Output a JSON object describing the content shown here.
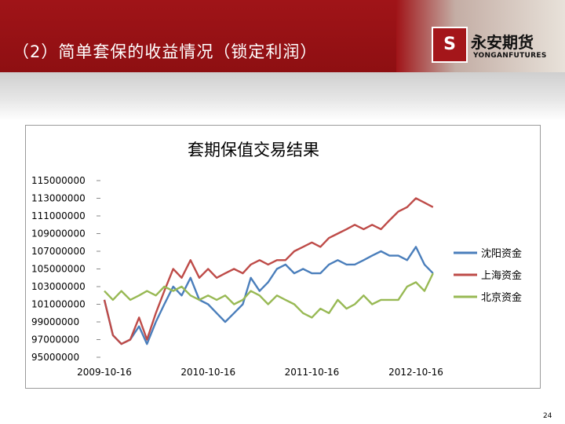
{
  "slide": {
    "title": "（2）简单套保的收益情况（锁定利润）",
    "page_number": "24",
    "logo_mark": "S",
    "logo_cn": "永安期货",
    "logo_en": "YONGANFUTURES"
  },
  "colors": {
    "header_red": "#a01418",
    "series_shenyang": "#4a7ebb",
    "series_shanghai": "#be4b48",
    "series_beijing": "#98b954"
  },
  "chart_data": {
    "type": "line",
    "title": "套期保值交易结果",
    "xlabel": "",
    "ylabel": "",
    "x_tick_labels": [
      "2009-10-16",
      "2010-10-16",
      "2011-10-16",
      "2012-10-16"
    ],
    "y_ticks": [
      95000000,
      97000000,
      99000000,
      101000000,
      103000000,
      105000000,
      107000000,
      109000000,
      111000000,
      113000000,
      115000000
    ],
    "ylim": [
      95000000,
      115000000
    ],
    "grid": false,
    "legend_position": "right",
    "series": [
      {
        "name": "沈阳资金",
        "x": [
          "2009-10-16",
          "2009-11-15",
          "2009-12-15",
          "2010-01-15",
          "2010-02-15",
          "2010-03-15",
          "2010-04-15",
          "2010-05-15",
          "2010-06-15",
          "2010-07-15",
          "2010-08-15",
          "2010-09-15",
          "2010-10-16",
          "2010-11-15",
          "2010-12-15",
          "2011-01-15",
          "2011-02-15",
          "2011-03-15",
          "2011-04-15",
          "2011-05-15",
          "2011-06-15",
          "2011-07-15",
          "2011-08-15",
          "2011-09-15",
          "2011-10-16",
          "2011-11-15",
          "2011-12-15",
          "2012-01-15",
          "2012-02-15",
          "2012-03-15",
          "2012-04-15",
          "2012-05-15",
          "2012-06-15",
          "2012-07-15",
          "2012-08-15",
          "2012-09-15",
          "2012-10-16",
          "2012-11-15",
          "2012-12-15"
        ],
        "values": [
          101500000,
          97500000,
          96500000,
          97000000,
          98500000,
          96500000,
          99000000,
          101000000,
          103000000,
          102000000,
          104000000,
          101500000,
          101000000,
          100000000,
          99000000,
          100000000,
          101000000,
          104000000,
          102500000,
          103500000,
          105000000,
          105500000,
          104500000,
          105000000,
          104500000,
          104500000,
          105500000,
          106000000,
          105500000,
          105500000,
          106000000,
          106500000,
          107000000,
          106500000,
          106500000,
          106000000,
          107500000,
          105500000,
          104500000
        ]
      },
      {
        "name": "上海资金",
        "x": [
          "2009-10-16",
          "2009-11-15",
          "2009-12-15",
          "2010-01-15",
          "2010-02-15",
          "2010-03-15",
          "2010-04-15",
          "2010-05-15",
          "2010-06-15",
          "2010-07-15",
          "2010-08-15",
          "2010-09-15",
          "2010-10-16",
          "2010-11-15",
          "2010-12-15",
          "2011-01-15",
          "2011-02-15",
          "2011-03-15",
          "2011-04-15",
          "2011-05-15",
          "2011-06-15",
          "2011-07-15",
          "2011-08-15",
          "2011-09-15",
          "2011-10-16",
          "2011-11-15",
          "2011-12-15",
          "2012-01-15",
          "2012-02-15",
          "2012-03-15",
          "2012-04-15",
          "2012-05-15",
          "2012-06-15",
          "2012-07-15",
          "2012-08-15",
          "2012-09-15",
          "2012-10-16",
          "2012-11-15",
          "2012-12-15"
        ],
        "values": [
          101500000,
          97500000,
          96500000,
          97000000,
          99500000,
          97000000,
          100000000,
          102500000,
          105000000,
          104000000,
          106000000,
          104000000,
          105000000,
          104000000,
          104500000,
          105000000,
          104500000,
          105500000,
          106000000,
          105500000,
          106000000,
          106000000,
          107000000,
          107500000,
          108000000,
          107500000,
          108500000,
          109000000,
          109500000,
          110000000,
          109500000,
          110000000,
          109500000,
          110500000,
          111500000,
          112000000,
          113000000,
          112500000,
          112000000
        ]
      },
      {
        "name": "北京资金",
        "x": [
          "2009-10-16",
          "2009-11-15",
          "2009-12-15",
          "2010-01-15",
          "2010-02-15",
          "2010-03-15",
          "2010-04-15",
          "2010-05-15",
          "2010-06-15",
          "2010-07-15",
          "2010-08-15",
          "2010-09-15",
          "2010-10-16",
          "2010-11-15",
          "2010-12-15",
          "2011-01-15",
          "2011-02-15",
          "2011-03-15",
          "2011-04-15",
          "2011-05-15",
          "2011-06-15",
          "2011-07-15",
          "2011-08-15",
          "2011-09-15",
          "2011-10-16",
          "2011-11-15",
          "2011-12-15",
          "2012-01-15",
          "2012-02-15",
          "2012-03-15",
          "2012-04-15",
          "2012-05-15",
          "2012-06-15",
          "2012-07-15",
          "2012-08-15",
          "2012-09-15",
          "2012-10-16",
          "2012-11-15",
          "2012-12-15"
        ],
        "values": [
          102500000,
          101500000,
          102500000,
          101500000,
          102000000,
          102500000,
          102000000,
          103000000,
          102500000,
          103000000,
          102000000,
          101500000,
          102000000,
          101500000,
          102000000,
          101000000,
          101500000,
          102500000,
          102000000,
          101000000,
          102000000,
          101500000,
          101000000,
          100000000,
          99500000,
          100500000,
          100000000,
          101500000,
          100500000,
          101000000,
          102000000,
          101000000,
          101500000,
          101500000,
          101500000,
          103000000,
          103500000,
          102500000,
          104500000
        ]
      }
    ]
  }
}
